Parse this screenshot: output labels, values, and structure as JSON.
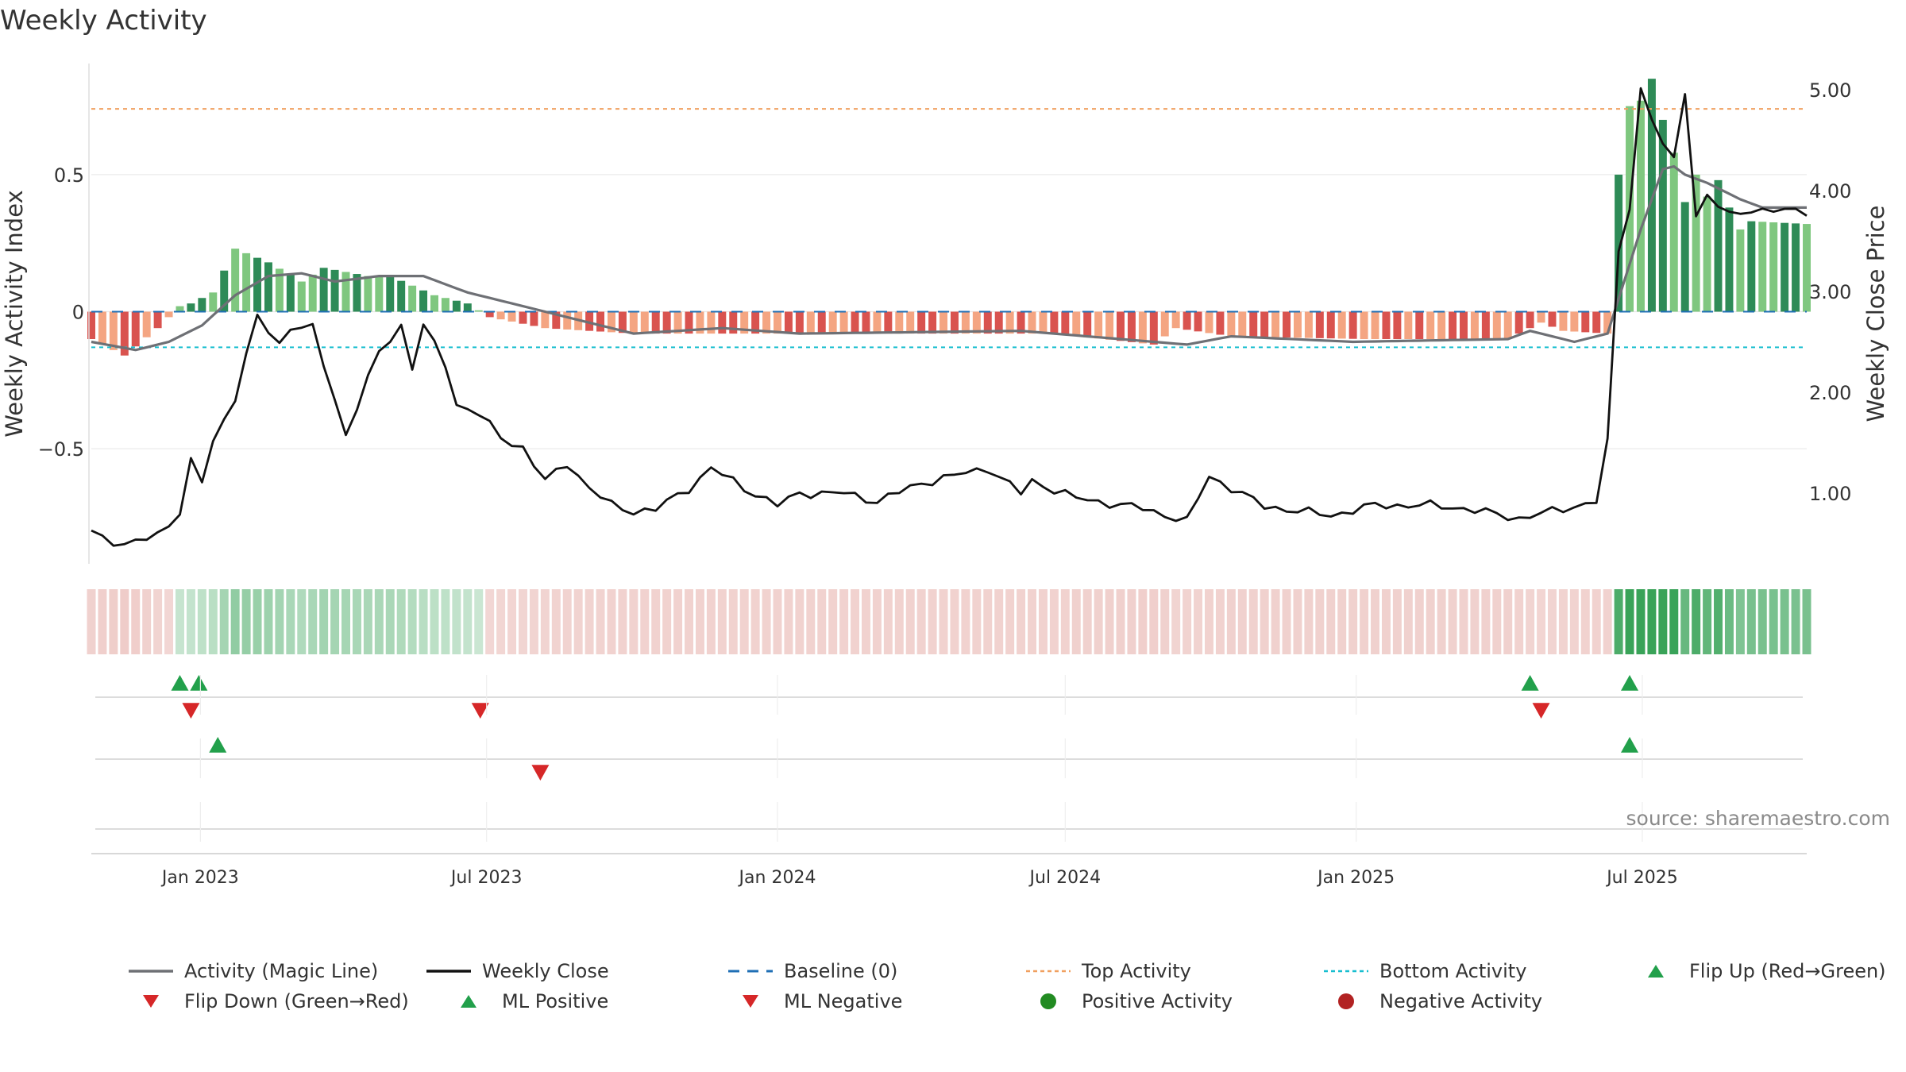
{
  "title": "Weekly Activity",
  "source_text": "source: sharemaestro.com",
  "chart_data": {
    "type": "bar",
    "title": "Weekly Activity",
    "y_left_label": "Weekly Activity Index",
    "y_right_label": "Weekly Close Price",
    "y_left_ticks": [
      {
        "v": 0.5,
        "label": "0.5"
      },
      {
        "v": 0,
        "label": "0"
      },
      {
        "v": -0.5,
        "label": "−0.5"
      }
    ],
    "y_right_ticks": [
      {
        "v": 5,
        "label": "5.00"
      },
      {
        "v": 4,
        "label": "4.00"
      },
      {
        "v": 3,
        "label": "3.00"
      },
      {
        "v": 2,
        "label": "2.00"
      },
      {
        "v": 1,
        "label": "1.00"
      }
    ],
    "y_left_range": [
      -0.92,
      0.92
    ],
    "y_right_range": [
      0.3,
      5.3
    ],
    "x_range": [
      "2022-10-24",
      "2025-10-13"
    ],
    "x_ticks": [
      {
        "date": "2023-01-01",
        "label": "Jan 2023"
      },
      {
        "date": "2023-07-01",
        "label": "Jul 2023"
      },
      {
        "date": "2024-01-01",
        "label": "Jan 2024"
      },
      {
        "date": "2024-07-01",
        "label": "Jul 2024"
      },
      {
        "date": "2025-01-01",
        "label": "Jan 2025"
      },
      {
        "date": "2025-07-01",
        "label": "Jul 2025"
      }
    ],
    "top_activity": 0.74,
    "bottom_activity": -0.13,
    "activity_keypoints": [
      {
        "date": "2022-10-24",
        "value": -0.1
      },
      {
        "date": "2022-11-14",
        "value": -0.16
      },
      {
        "date": "2022-12-05",
        "value": -0.06
      },
      {
        "date": "2022-12-19",
        "value": 0.02
      },
      {
        "date": "2022-12-26",
        "value": 0.03
      },
      {
        "date": "2023-01-09",
        "value": 0.07
      },
      {
        "date": "2023-01-23",
        "value": 0.23
      },
      {
        "date": "2023-02-13",
        "value": 0.18
      },
      {
        "date": "2023-03-06",
        "value": 0.11
      },
      {
        "date": "2023-03-20",
        "value": 0.16
      },
      {
        "date": "2023-04-17",
        "value": 0.13
      },
      {
        "date": "2023-05-01",
        "value": 0.13
      },
      {
        "date": "2023-05-29",
        "value": 0.06
      },
      {
        "date": "2023-06-19",
        "value": 0.03
      },
      {
        "date": "2023-07-03",
        "value": -0.02
      },
      {
        "date": "2023-08-07",
        "value": -0.06
      },
      {
        "date": "2023-10-02",
        "value": -0.08
      },
      {
        "date": "2024-06-24",
        "value": -0.08
      },
      {
        "date": "2024-08-26",
        "value": -0.12
      },
      {
        "date": "2024-09-09",
        "value": -0.06
      },
      {
        "date": "2024-10-14",
        "value": -0.09
      },
      {
        "date": "2025-01-06",
        "value": -0.1
      },
      {
        "date": "2025-04-07",
        "value": -0.1
      },
      {
        "date": "2025-04-28",
        "value": -0.04
      },
      {
        "date": "2025-05-12",
        "value": -0.07
      },
      {
        "date": "2025-06-09",
        "value": -0.08
      },
      {
        "date": "2025-06-16",
        "value": 0.5
      },
      {
        "date": "2025-06-23",
        "value": 0.75
      },
      {
        "date": "2025-06-30",
        "value": 0.77
      },
      {
        "date": "2025-07-07",
        "value": 0.85
      },
      {
        "date": "2025-07-14",
        "value": 0.7
      },
      {
        "date": "2025-07-21",
        "value": 0.58
      },
      {
        "date": "2025-07-28",
        "value": 0.4
      },
      {
        "date": "2025-08-04",
        "value": 0.5
      },
      {
        "date": "2025-08-11",
        "value": 0.42
      },
      {
        "date": "2025-08-18",
        "value": 0.48
      },
      {
        "date": "2025-08-25",
        "value": 0.38
      },
      {
        "date": "2025-09-01",
        "value": 0.3
      },
      {
        "date": "2025-09-08",
        "value": 0.33
      },
      {
        "date": "2025-10-13",
        "value": 0.32
      }
    ],
    "close_keypoints": [
      {
        "date": "2022-10-24",
        "value": 0.63
      },
      {
        "date": "2022-11-14",
        "value": 0.47
      },
      {
        "date": "2022-12-05",
        "value": 0.6
      },
      {
        "date": "2022-12-19",
        "value": 0.8
      },
      {
        "date": "2022-12-26",
        "value": 1.3
      },
      {
        "date": "2023-01-02",
        "value": 1.12
      },
      {
        "date": "2023-01-09",
        "value": 1.52
      },
      {
        "date": "2023-01-23",
        "value": 1.95
      },
      {
        "date": "2023-02-06",
        "value": 2.75
      },
      {
        "date": "2023-02-20",
        "value": 2.48
      },
      {
        "date": "2023-02-27",
        "value": 2.65
      },
      {
        "date": "2023-03-13",
        "value": 2.63
      },
      {
        "date": "2023-04-03",
        "value": 1.58
      },
      {
        "date": "2023-04-24",
        "value": 2.4
      },
      {
        "date": "2023-05-08",
        "value": 2.66
      },
      {
        "date": "2023-05-15",
        "value": 2.25
      },
      {
        "date": "2023-05-22",
        "value": 2.66
      },
      {
        "date": "2023-06-05",
        "value": 2.28
      },
      {
        "date": "2023-06-12",
        "value": 1.88
      },
      {
        "date": "2023-06-26",
        "value": 1.79
      },
      {
        "date": "2023-07-10",
        "value": 1.55
      },
      {
        "date": "2023-07-24",
        "value": 1.45
      },
      {
        "date": "2023-08-07",
        "value": 1.12
      },
      {
        "date": "2023-08-21",
        "value": 1.3
      },
      {
        "date": "2023-09-04",
        "value": 1.05
      },
      {
        "date": "2023-09-18",
        "value": 0.88
      },
      {
        "date": "2023-10-02",
        "value": 0.82
      },
      {
        "date": "2023-10-16",
        "value": 0.84
      },
      {
        "date": "2023-11-06",
        "value": 1.05
      },
      {
        "date": "2023-11-20",
        "value": 1.25
      },
      {
        "date": "2023-12-11",
        "value": 1.05
      },
      {
        "date": "2024-01-01",
        "value": 0.88
      },
      {
        "date": "2024-01-15",
        "value": 1.0
      },
      {
        "date": "2024-02-12",
        "value": 1.0
      },
      {
        "date": "2024-03-04",
        "value": 0.92
      },
      {
        "date": "2024-04-01",
        "value": 1.1
      },
      {
        "date": "2024-05-13",
        "value": 1.25
      },
      {
        "date": "2024-06-03",
        "value": 1.0
      },
      {
        "date": "2024-06-10",
        "value": 1.12
      },
      {
        "date": "2024-07-08",
        "value": 0.95
      },
      {
        "date": "2024-08-19",
        "value": 0.85
      },
      {
        "date": "2024-09-16",
        "value": 0.72
      },
      {
        "date": "2024-09-30",
        "value": 1.17
      },
      {
        "date": "2024-10-21",
        "value": 0.99
      },
      {
        "date": "2024-11-04",
        "value": 0.87
      },
      {
        "date": "2024-12-16",
        "value": 0.78
      },
      {
        "date": "2025-01-13",
        "value": 0.88
      },
      {
        "date": "2025-02-17",
        "value": 0.88
      },
      {
        "date": "2025-03-10",
        "value": 0.85
      },
      {
        "date": "2025-04-14",
        "value": 0.75
      },
      {
        "date": "2025-05-05",
        "value": 0.82
      },
      {
        "date": "2025-06-02",
        "value": 0.92
      },
      {
        "date": "2025-06-09",
        "value": 1.5
      },
      {
        "date": "2025-06-16",
        "value": 3.4
      },
      {
        "date": "2025-06-23",
        "value": 3.85
      },
      {
        "date": "2025-06-30",
        "value": 5.0
      },
      {
        "date": "2025-07-07",
        "value": 4.72
      },
      {
        "date": "2025-07-14",
        "value": 4.45
      },
      {
        "date": "2025-07-21",
        "value": 4.3
      },
      {
        "date": "2025-07-28",
        "value": 5.0
      },
      {
        "date": "2025-08-04",
        "value": 3.75
      },
      {
        "date": "2025-08-11",
        "value": 3.95
      },
      {
        "date": "2025-08-25",
        "value": 3.75
      },
      {
        "date": "2025-09-08",
        "value": 3.82
      },
      {
        "date": "2025-09-15",
        "value": 3.8
      }
    ],
    "magic_line_keypoints": [
      {
        "date": "2022-10-24",
        "value": -0.11
      },
      {
        "date": "2022-11-21",
        "value": -0.14
      },
      {
        "date": "2022-12-12",
        "value": -0.11
      },
      {
        "date": "2023-01-02",
        "value": -0.05
      },
      {
        "date": "2023-01-23",
        "value": 0.06
      },
      {
        "date": "2023-02-13",
        "value": 0.13
      },
      {
        "date": "2023-03-06",
        "value": 0.14
      },
      {
        "date": "2023-03-27",
        "value": 0.11
      },
      {
        "date": "2023-04-24",
        "value": 0.13
      },
      {
        "date": "2023-05-22",
        "value": 0.13
      },
      {
        "date": "2023-06-19",
        "value": 0.07
      },
      {
        "date": "2023-07-17",
        "value": 0.03
      },
      {
        "date": "2023-08-14",
        "value": -0.01
      },
      {
        "date": "2023-10-02",
        "value": -0.08
      },
      {
        "date": "2023-11-27",
        "value": -0.06
      },
      {
        "date": "2024-01-15",
        "value": -0.08
      },
      {
        "date": "2024-06-03",
        "value": -0.07
      },
      {
        "date": "2024-08-05",
        "value": -0.1
      },
      {
        "date": "2024-09-16",
        "value": -0.12
      },
      {
        "date": "2024-10-14",
        "value": -0.09
      },
      {
        "date": "2024-12-30",
        "value": -0.11
      },
      {
        "date": "2025-04-07",
        "value": -0.1
      },
      {
        "date": "2025-04-21",
        "value": -0.07
      },
      {
        "date": "2025-05-19",
        "value": -0.11
      },
      {
        "date": "2025-06-09",
        "value": -0.08
      },
      {
        "date": "2025-06-30",
        "value": 0.3
      },
      {
        "date": "2025-07-14",
        "value": 0.52
      },
      {
        "date": "2025-07-21",
        "value": 0.53
      },
      {
        "date": "2025-07-28",
        "value": 0.5
      },
      {
        "date": "2025-08-11",
        "value": 0.47
      },
      {
        "date": "2025-09-01",
        "value": 0.41
      },
      {
        "date": "2025-09-15",
        "value": 0.38
      }
    ],
    "flip_up_dates": [
      "2022-12-19",
      "2022-12-31",
      "2025-04-21",
      "2025-06-23"
    ],
    "flip_down_dates": [
      "2022-12-26",
      "2023-06-27",
      "2025-04-28"
    ],
    "ml_positive_dates": [
      "2023-01-12",
      "2025-06-23"
    ],
    "ml_negative_dates": [
      "2023-08-04"
    ],
    "legend": [
      {
        "key": "magic",
        "label": "Activity (Magic Line)"
      },
      {
        "key": "close",
        "label": "Weekly Close"
      },
      {
        "key": "baseline",
        "label": "Baseline (0)"
      },
      {
        "key": "top",
        "label": "Top Activity"
      },
      {
        "key": "bottom",
        "label": "Bottom Activity"
      },
      {
        "key": "flipup",
        "label": "Flip Up (Red→Green)"
      },
      {
        "key": "flipdown",
        "label": "Flip Down (Green→Red)"
      },
      {
        "key": "mlpos",
        "label": "ML Positive"
      },
      {
        "key": "mlneg",
        "label": "ML Negative"
      },
      {
        "key": "posact",
        "label": "Positive Activity"
      },
      {
        "key": "negact",
        "label": "Negative Activity"
      }
    ],
    "colors": {
      "pos_dark": "#2e8b57",
      "pos_light": "#7fc77f",
      "neg_dark": "#d9534f",
      "neg_light": "#f4a582",
      "magic": "#6e7075",
      "close": "#111111",
      "baseline": "#1f6fb5",
      "top": "#f0a060",
      "bottom": "#17becf",
      "marker_green": "#22a04b",
      "marker_red": "#d62728",
      "pos_dot": "#228b22",
      "neg_dot": "#b22222",
      "strip_green": "#2e9e4f",
      "strip_red": "#d98880"
    }
  }
}
